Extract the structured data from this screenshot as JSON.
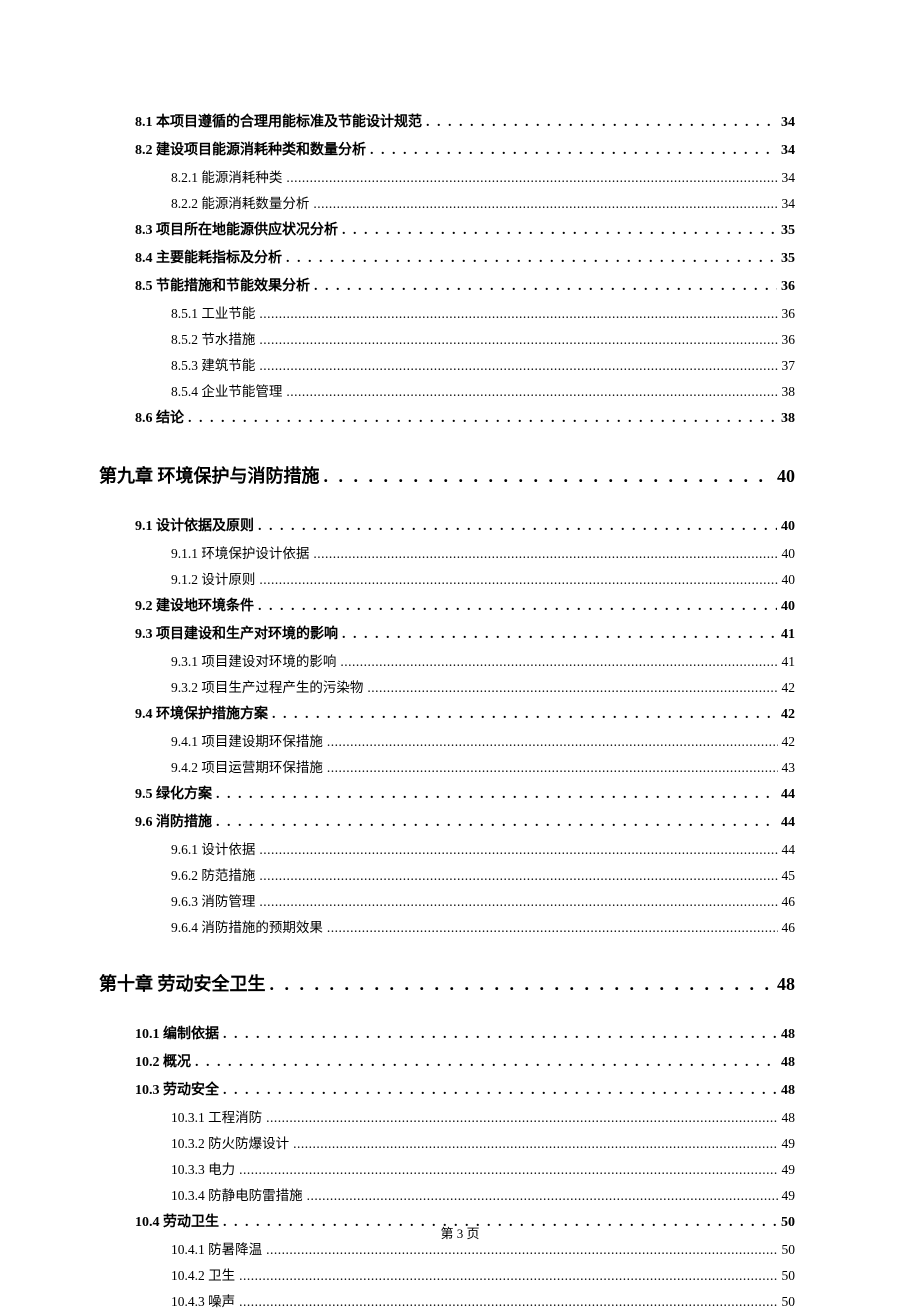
{
  "footer": "第 3 页",
  "entries": [
    {
      "level": "level-1",
      "label": "8.1 本项目遵循的合理用能标准及节能设计规范",
      "page": "34"
    },
    {
      "level": "level-1",
      "label": "8.2 建设项目能源消耗种类和数量分析",
      "page": "34"
    },
    {
      "level": "level-2",
      "label": "8.2.1 能源消耗种类",
      "page": "34"
    },
    {
      "level": "level-2",
      "label": "8.2.2 能源消耗数量分析",
      "page": "34"
    },
    {
      "level": "level-1",
      "label": "8.3 项目所在地能源供应状况分析",
      "page": "35"
    },
    {
      "level": "level-1",
      "label": "8.4 主要能耗指标及分析",
      "page": "35"
    },
    {
      "level": "level-1",
      "label": "8.5 节能措施和节能效果分析",
      "page": "36"
    },
    {
      "level": "level-2",
      "label": "8.5.1 工业节能",
      "page": "36"
    },
    {
      "level": "level-2",
      "label": "8.5.2 节水措施",
      "page": "36"
    },
    {
      "level": "level-2",
      "label": "8.5.3 建筑节能",
      "page": "37"
    },
    {
      "level": "level-2",
      "label": "8.5.4 企业节能管理",
      "page": "38"
    },
    {
      "level": "level-1",
      "label": "8.6 结论",
      "page": "38"
    },
    {
      "level": "chapter",
      "label": "第九章 环境保护与消防措施",
      "page": "40"
    },
    {
      "level": "level-1",
      "label": "9.1 设计依据及原则",
      "page": "40"
    },
    {
      "level": "level-2",
      "label": "9.1.1 环境保护设计依据",
      "page": "40"
    },
    {
      "level": "level-2",
      "label": "9.1.2 设计原则",
      "page": "40"
    },
    {
      "level": "level-1",
      "label": "9.2 建设地环境条件",
      "page": "40"
    },
    {
      "level": "level-1",
      "label": "9.3  项目建设和生产对环境的影响",
      "page": "41"
    },
    {
      "level": "level-2",
      "label": "9.3.1  项目建设对环境的影响",
      "page": "41"
    },
    {
      "level": "level-2",
      "label": "9.3.2 项目生产过程产生的污染物",
      "page": "42"
    },
    {
      "level": "level-1",
      "label": "9.4  环境保护措施方案",
      "page": "42"
    },
    {
      "level": "level-2",
      "label": "9.4.1  项目建设期环保措施",
      "page": "42"
    },
    {
      "level": "level-2",
      "label": "9.4.2  项目运营期环保措施",
      "page": "43"
    },
    {
      "level": "level-1",
      "label": "9.5 绿化方案",
      "page": "44"
    },
    {
      "level": "level-1",
      "label": "9.6 消防措施",
      "page": "44"
    },
    {
      "level": "level-2",
      "label": "9.6.1 设计依据",
      "page": "44"
    },
    {
      "level": "level-2",
      "label": "9.6.2 防范措施",
      "page": "45"
    },
    {
      "level": "level-2",
      "label": "9.6.3 消防管理",
      "page": "46"
    },
    {
      "level": "level-2",
      "label": "9.6.4 消防措施的预期效果",
      "page": "46"
    },
    {
      "level": "chapter",
      "label": "第十章 劳动安全卫生",
      "page": "48"
    },
    {
      "level": "level-1",
      "label": "10.1  编制依据",
      "page": "48"
    },
    {
      "level": "level-1",
      "label": "10.2 概况",
      "page": "48"
    },
    {
      "level": "level-1",
      "label": "10.3  劳动安全",
      "page": "48"
    },
    {
      "level": "level-2",
      "label": "10.3.1 工程消防",
      "page": "48"
    },
    {
      "level": "level-2",
      "label": "10.3.2 防火防爆设计",
      "page": "49"
    },
    {
      "level": "level-2",
      "label": "10.3.3 电力",
      "page": "49"
    },
    {
      "level": "level-2",
      "label": "10.3.4 防静电防雷措施",
      "page": "49"
    },
    {
      "level": "level-1",
      "label": "10.4 劳动卫生",
      "page": "50"
    },
    {
      "level": "level-2",
      "label": "10.4.1 防暑降温",
      "page": "50"
    },
    {
      "level": "level-2",
      "label": "10.4.2 卫生",
      "page": "50"
    },
    {
      "level": "level-2",
      "label": "10.4.3 噪声",
      "page": "50"
    }
  ]
}
